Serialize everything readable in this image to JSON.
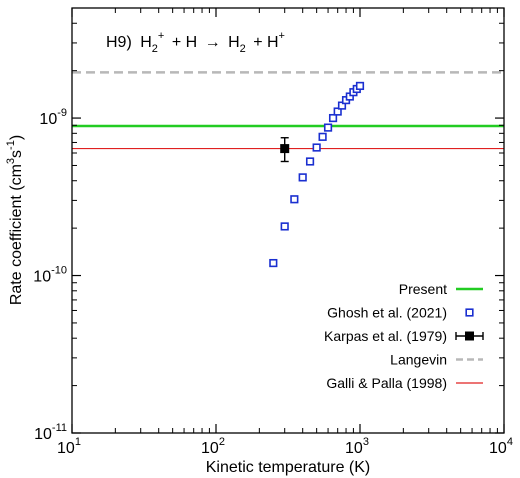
{
  "chart_data": {
    "type": "scatter",
    "title_parts": {
      "prefix": "H9)",
      "r1": "H",
      "r1_sup": "+",
      "r1_sub": "2",
      "plus1": "+ H",
      "arrow": "→",
      "p1": "H",
      "p1_sub": "2",
      "plus2": "+ H",
      "p2_sup": "+"
    },
    "xlabel": "Kinetic temperature (K)",
    "ylabel": {
      "main": "Rate coefficient (cm",
      "sup1": "3",
      "mid": "s",
      "sup2": "-1",
      "end": ")"
    },
    "xscale": "log",
    "yscale": "log",
    "xlim": [
      10,
      10000
    ],
    "ylim": [
      1e-11,
      5e-09
    ],
    "x_ticks": [
      {
        "value": 10,
        "base": "10",
        "exp": "1"
      },
      {
        "value": 100,
        "base": "10",
        "exp": "2"
      },
      {
        "value": 1000,
        "base": "10",
        "exp": "3"
      },
      {
        "value": 10000,
        "base": "10",
        "exp": "4"
      }
    ],
    "y_ticks": [
      {
        "value": 1e-11,
        "base": "10",
        "exp": "-11"
      },
      {
        "value": 1e-10,
        "base": "10",
        "exp": "-10"
      },
      {
        "value": 1e-09,
        "base": "10",
        "exp": "-9"
      }
    ],
    "grid": false,
    "legend_position": "bottom-right",
    "series": [
      {
        "name": "Present",
        "kind": "hline",
        "y": 8.9e-10,
        "color": "#22cc22",
        "width": 2.5
      },
      {
        "name": "Ghosh et al. (2021)",
        "kind": "scatter",
        "marker": "open-square",
        "color": "#1a2fd0",
        "x": [
          250,
          300,
          350,
          400,
          450,
          500,
          550,
          600,
          650,
          700,
          750,
          800,
          850,
          900,
          950,
          1000
        ],
        "y": [
          1.2e-10,
          2.05e-10,
          3.05e-10,
          4.2e-10,
          5.3e-10,
          6.5e-10,
          7.6e-10,
          8.7e-10,
          1e-09,
          1.1e-09,
          1.2e-09,
          1.3e-09,
          1.37e-09,
          1.46e-09,
          1.53e-09,
          1.6e-09
        ]
      },
      {
        "name": "Karpas et al. (1979)",
        "kind": "errorbar",
        "marker": "filled-square",
        "color": "#000000",
        "x": [
          300
        ],
        "y": [
          6.4e-10
        ],
        "yerr_low": [
          5.3e-10
        ],
        "yerr_high": [
          7.5e-10
        ]
      },
      {
        "name": "Langevin",
        "kind": "hline",
        "y": 1.95e-09,
        "color": "#b8b8b8",
        "dash": true,
        "width": 2.5
      },
      {
        "name": "Galli & Palla (1998)",
        "kind": "hline",
        "y": 6.4e-10,
        "color": "#e02020",
        "width": 1.2
      }
    ]
  }
}
